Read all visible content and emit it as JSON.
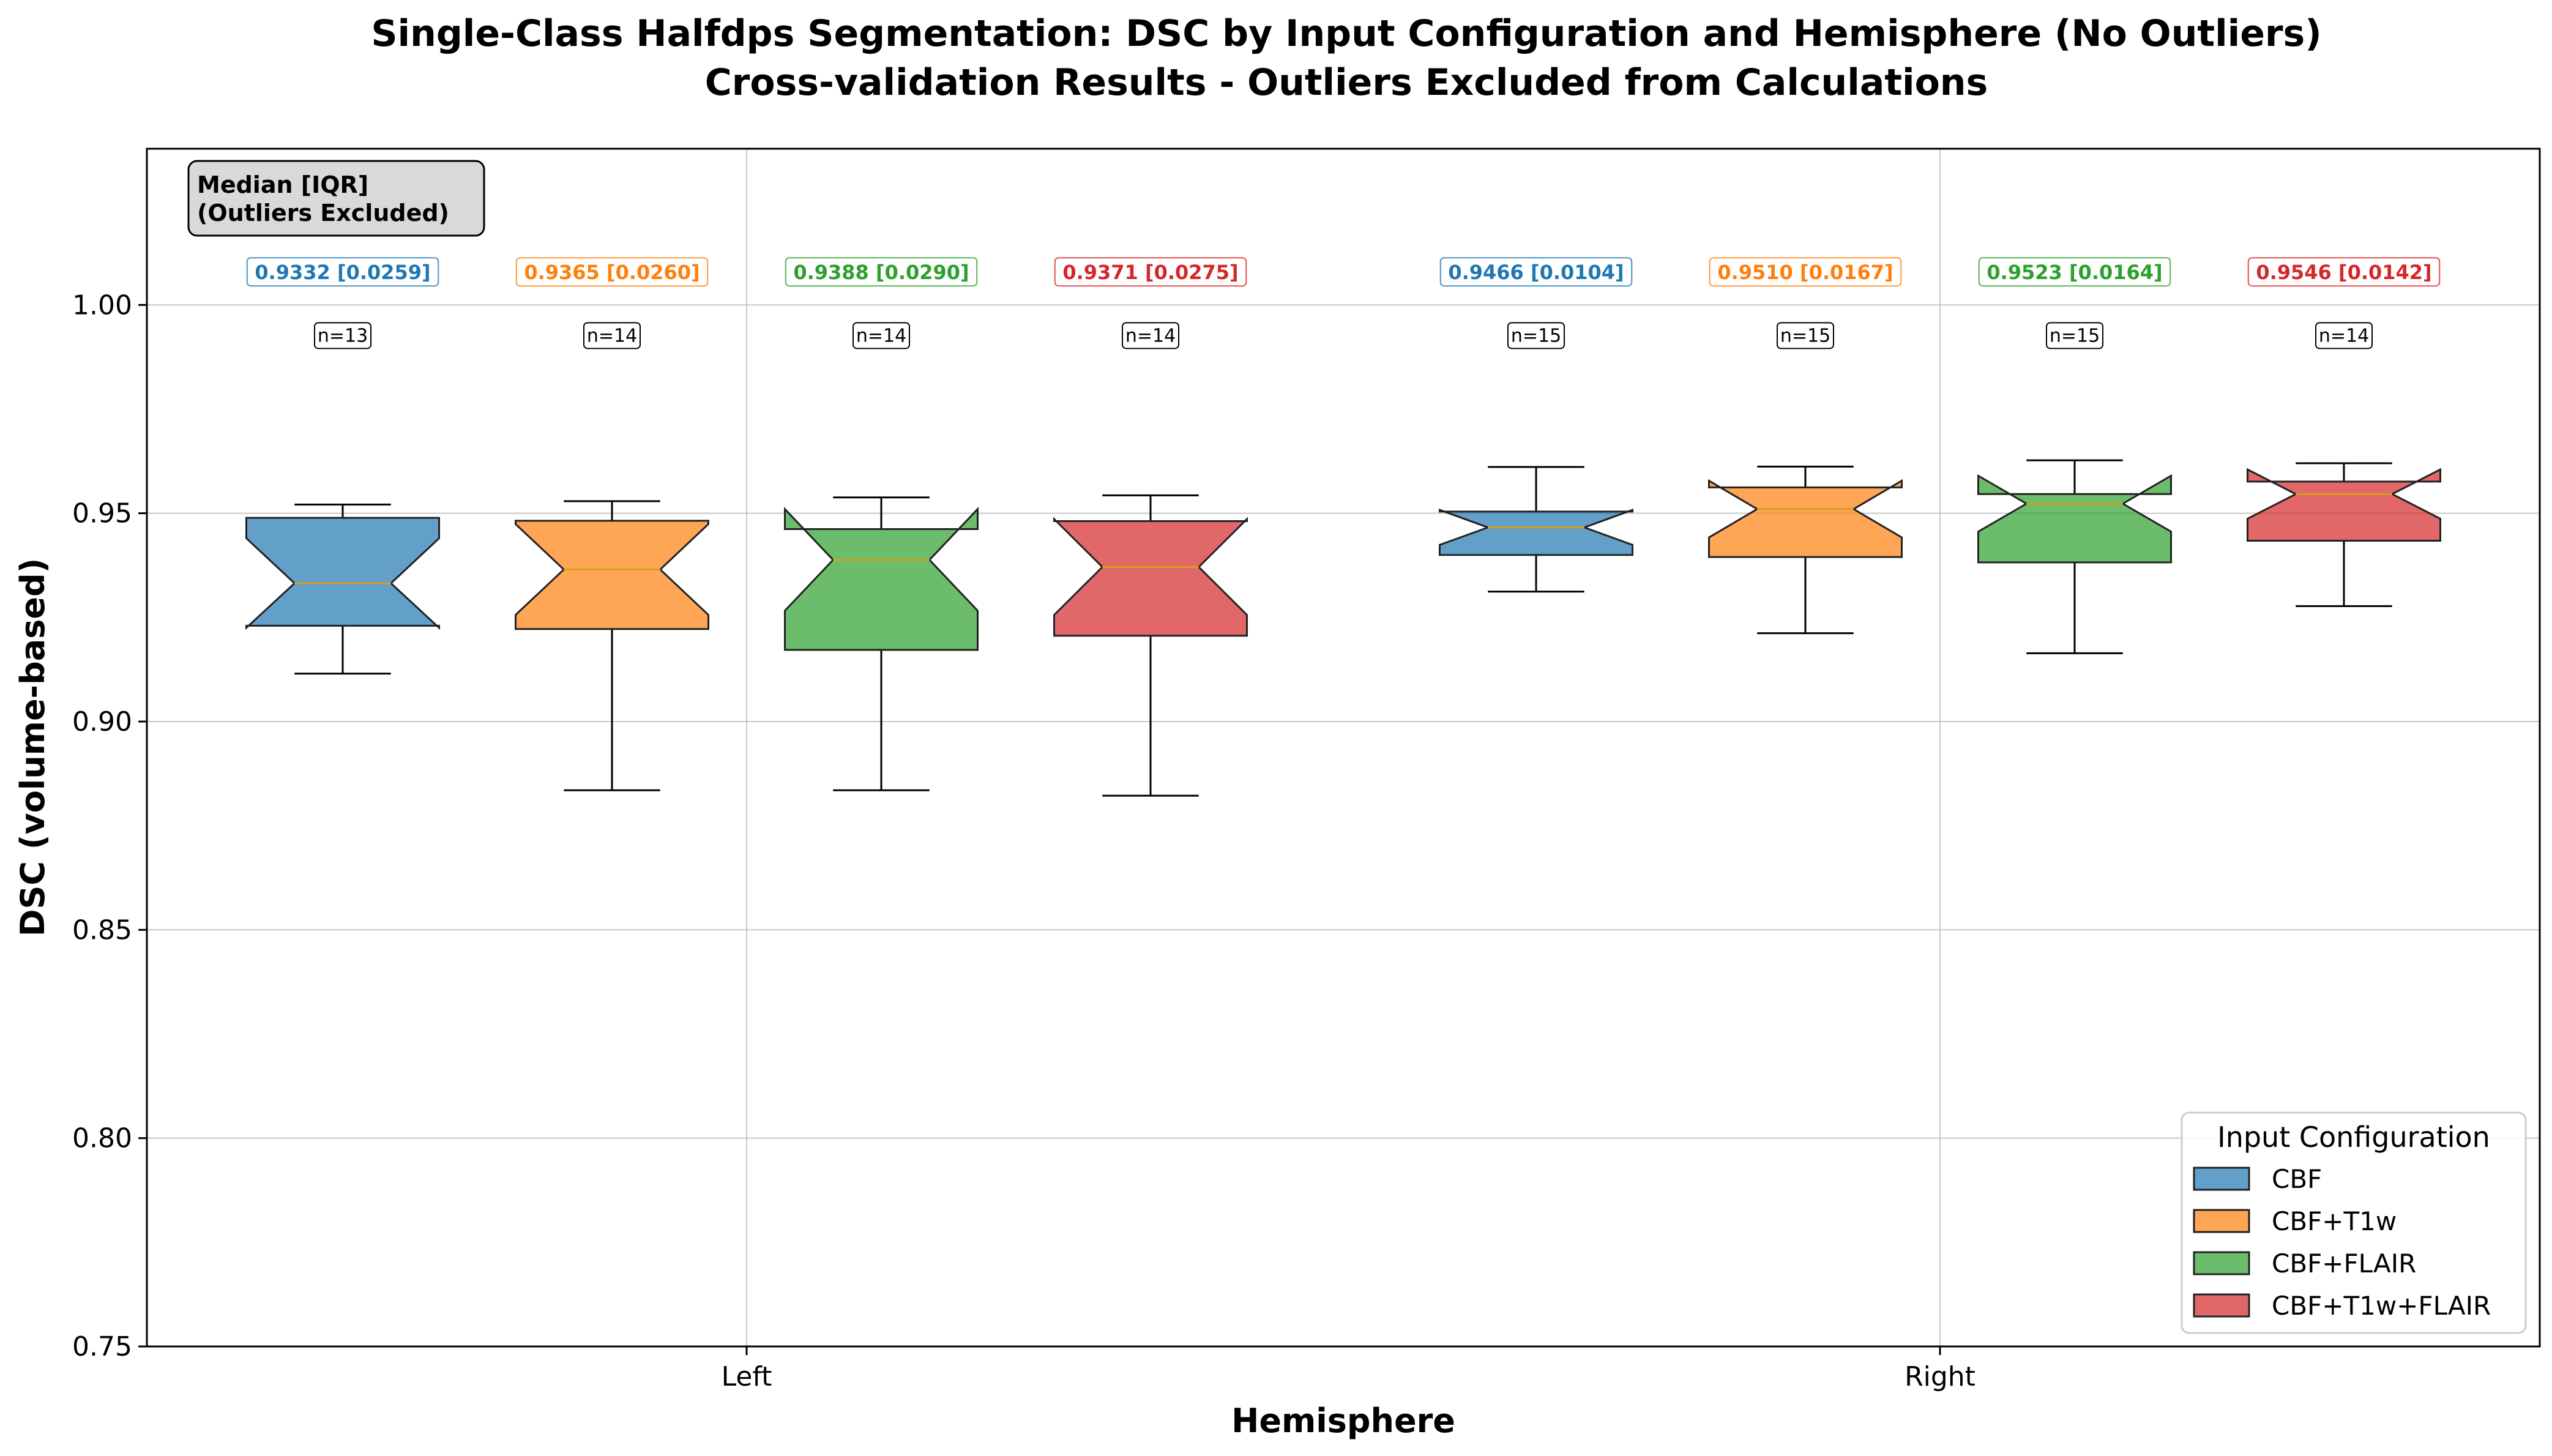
{
  "chart_data": {
    "type": "boxplot",
    "title": "Single-Class Halfdps Segmentation: DSC by Input Configuration and Hemisphere (No Outliers)",
    "subtitle": "Cross-validation Results - Outliers Excluded from Calculations",
    "xlabel": "Hemisphere",
    "ylabel": "DSC (volume-based)",
    "ylim": [
      0.75,
      1.0375
    ],
    "yticks": [
      "0.75",
      "0.80",
      "0.85",
      "0.90",
      "0.95",
      "1.00"
    ],
    "categories": [
      "Left",
      "Right"
    ],
    "grid": true,
    "notched": true,
    "stats_box": "Median [IQR]\n(Outliers Excluded)",
    "legend": {
      "title": "Input Configuration",
      "placement": "lower-right",
      "entries": [
        "CBF",
        "CBF+T1w",
        "CBF+FLAIR",
        "CBF+T1w+FLAIR"
      ]
    },
    "colors": {
      "CBF": "#1f77b4",
      "CBF+T1w": "#ff7f0e",
      "CBF+FLAIR": "#2ca02c",
      "CBF+T1w+FLAIR": "#d62728",
      "median_line": "#d4a017"
    },
    "series": [
      {
        "name": "CBF",
        "boxes": [
          {
            "hemisphere": "Left",
            "label": "0.9332 [0.0259]",
            "n_label": "n=13",
            "whislo": 0.9115,
            "q1": 0.923,
            "median": 0.9332,
            "q3": 0.9489,
            "whishi": 0.9521,
            "notchlo": 0.9225,
            "notchhi": 0.944
          },
          {
            "hemisphere": "Right",
            "label": "0.9466 [0.0104]",
            "n_label": "n=15",
            "whislo": 0.9312,
            "q1": 0.94,
            "median": 0.9466,
            "q3": 0.9504,
            "whishi": 0.9611,
            "notchlo": 0.9424,
            "notchhi": 0.9508
          }
        ]
      },
      {
        "name": "CBF+T1w",
        "boxes": [
          {
            "hemisphere": "Left",
            "label": "0.9365 [0.0260]",
            "n_label": "n=14",
            "whislo": 0.8835,
            "q1": 0.9222,
            "median": 0.9365,
            "q3": 0.9482,
            "whishi": 0.9529,
            "notchlo": 0.9256,
            "notchhi": 0.9474
          },
          {
            "hemisphere": "Right",
            "label": "0.9510 [0.0167]",
            "n_label": "n=15",
            "whislo": 0.9212,
            "q1": 0.9395,
            "median": 0.951,
            "q3": 0.9562,
            "whishi": 0.9612,
            "notchlo": 0.9442,
            "notchhi": 0.9578
          }
        ]
      },
      {
        "name": "CBF+FLAIR",
        "boxes": [
          {
            "hemisphere": "Left",
            "label": "0.9388 [0.0290]",
            "n_label": "n=14",
            "whislo": 0.8835,
            "q1": 0.9172,
            "median": 0.9388,
            "q3": 0.9462,
            "whishi": 0.9538,
            "notchlo": 0.9266,
            "notchhi": 0.951
          },
          {
            "hemisphere": "Right",
            "label": "0.9523 [0.0164]",
            "n_label": "n=15",
            "whislo": 0.9164,
            "q1": 0.9382,
            "median": 0.9523,
            "q3": 0.9546,
            "whishi": 0.9627,
            "notchlo": 0.9456,
            "notchhi": 0.959
          }
        ]
      },
      {
        "name": "CBF+T1w+FLAIR",
        "boxes": [
          {
            "hemisphere": "Left",
            "label": "0.9371 [0.0275]",
            "n_label": "n=14",
            "whislo": 0.8822,
            "q1": 0.9206,
            "median": 0.9371,
            "q3": 0.9481,
            "whishi": 0.9543,
            "notchlo": 0.9256,
            "notchhi": 0.9486
          },
          {
            "hemisphere": "Right",
            "label": "0.9546 [0.0142]",
            "n_label": "n=14",
            "whislo": 0.9277,
            "q1": 0.9434,
            "median": 0.9546,
            "q3": 0.9576,
            "whishi": 0.962,
            "notchlo": 0.9487,
            "notchhi": 0.9605
          }
        ]
      }
    ]
  }
}
